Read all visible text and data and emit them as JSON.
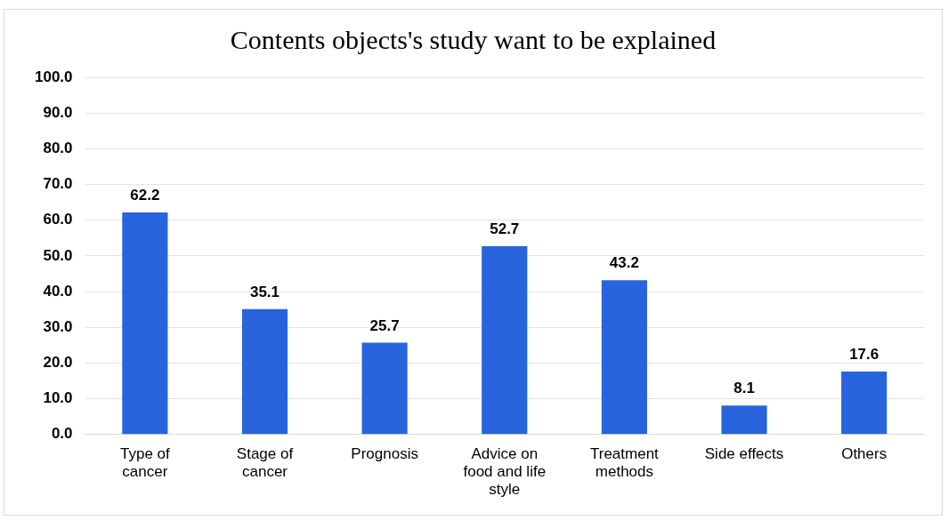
{
  "chart_data": {
    "type": "bar",
    "title": "Contents objects's study want to be explained",
    "categories": [
      "Type of cancer",
      "Stage of cancer",
      "Prognosis",
      "Advice on food and life style",
      "Treatment methods",
      "Side effects",
      "Others"
    ],
    "values": [
      62.2,
      35.1,
      25.7,
      52.7,
      43.2,
      8.1,
      17.6
    ],
    "color": "#2864dc",
    "ylim": [
      0,
      100
    ],
    "yticks": [
      {
        "value": 0,
        "label": "0.0"
      },
      {
        "value": 10,
        "label": "10.0"
      },
      {
        "value": 20,
        "label": "20.0"
      },
      {
        "value": 30,
        "label": "30.0"
      },
      {
        "value": 40,
        "label": "40.0"
      },
      {
        "value": 50,
        "label": "50.0"
      },
      {
        "value": 60,
        "label": "60.0"
      },
      {
        "value": 70,
        "label": "70.0"
      },
      {
        "value": 80,
        "label": "80.0"
      },
      {
        "value": 90,
        "label": "90.0"
      },
      {
        "value": 100,
        "label": "100.0"
      }
    ],
    "grid": "y",
    "legend": false,
    "data_labels": true
  }
}
